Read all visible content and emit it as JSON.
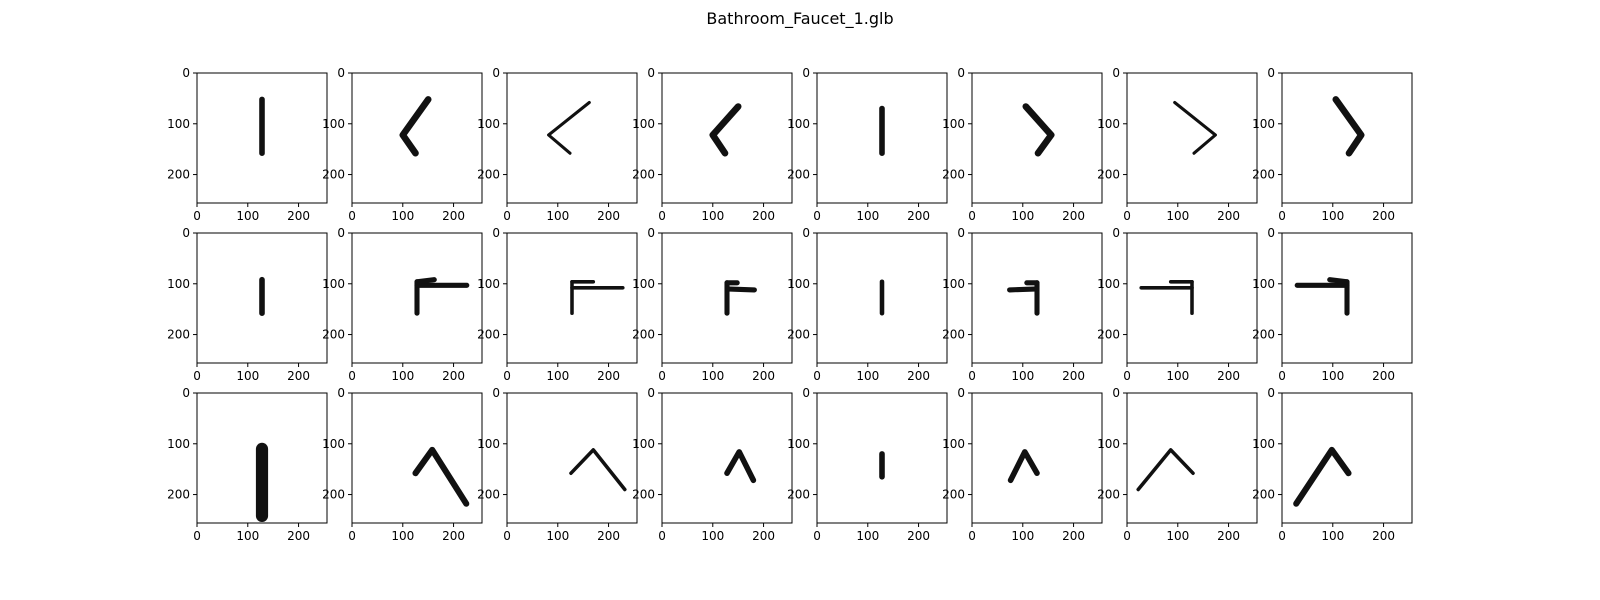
{
  "title": "Bathroom_Faucet_1.glb",
  "chart_data": {
    "type": "image_grid",
    "rows": 3,
    "cols": 8,
    "xlim": [
      0,
      256
    ],
    "ylim": [
      256,
      0
    ],
    "xticks": [
      0,
      100,
      200
    ],
    "yticks": [
      0,
      100,
      200
    ],
    "panel_background": "#ffffff",
    "object_color": "#111111",
    "grid": false,
    "panels": [
      {
        "shape": "upright",
        "lines": [
          [
            [
              128,
              52
            ],
            [
              128,
              158
            ]
          ]
        ],
        "w": 11
      },
      {
        "shape": "chevron",
        "lines": [
          [
            [
              150,
              52
            ],
            [
              100,
              122
            ],
            [
              125,
              158
            ]
          ]
        ],
        "w": 13
      },
      {
        "shape": "chevron-thin",
        "lines": [
          [
            [
              162,
              58
            ],
            [
              82,
              122
            ],
            [
              124,
              158
            ]
          ]
        ],
        "w": 6
      },
      {
        "shape": "chevron",
        "lines": [
          [
            [
              150,
              66
            ],
            [
              100,
              122
            ],
            [
              124,
              158
            ]
          ]
        ],
        "w": 13
      },
      {
        "shape": "upright",
        "lines": [
          [
            [
              128,
              70
            ],
            [
              128,
              158
            ]
          ]
        ],
        "w": 11
      },
      {
        "shape": "chevron",
        "lines": [
          [
            [
              106,
              66
            ],
            [
              156,
              122
            ],
            [
              130,
              158
            ]
          ]
        ],
        "w": 13
      },
      {
        "shape": "chevron-thin",
        "lines": [
          [
            [
              94,
              58
            ],
            [
              174,
              122
            ],
            [
              132,
              158
            ]
          ]
        ],
        "w": 6
      },
      {
        "shape": "chevron",
        "lines": [
          [
            [
              106,
              52
            ],
            [
              156,
              122
            ],
            [
              132,
              158
            ]
          ]
        ],
        "w": 13
      },
      {
        "shape": "upright",
        "lines": [
          [
            [
              128,
              92
            ],
            [
              128,
              158
            ]
          ]
        ],
        "w": 11
      },
      {
        "shape": "faucet",
        "lines": [
          [
            [
              128,
              96
            ],
            [
              128,
              158
            ]
          ],
          [
            [
              128,
              103
            ],
            [
              226,
              103
            ]
          ],
          [
            [
              128,
              96
            ],
            [
              162,
              92
            ]
          ]
        ],
        "w": 10
      },
      {
        "shape": "faucet",
        "lines": [
          [
            [
              128,
              96
            ],
            [
              128,
              158
            ]
          ],
          [
            [
              128,
              108
            ],
            [
              228,
              108
            ]
          ],
          [
            [
              128,
              96
            ],
            [
              170,
              96
            ]
          ]
        ],
        "w": 7
      },
      {
        "shape": "faucet",
        "lines": [
          [
            [
              128,
              98
            ],
            [
              128,
              158
            ]
          ],
          [
            [
              128,
              110
            ],
            [
              182,
              112
            ]
          ],
          [
            [
              128,
              98
            ],
            [
              148,
              98
            ]
          ]
        ],
        "w": 10
      },
      {
        "shape": "upright",
        "lines": [
          [
            [
              128,
              96
            ],
            [
              128,
              158
            ]
          ]
        ],
        "w": 9
      },
      {
        "shape": "faucet",
        "lines": [
          [
            [
              128,
              98
            ],
            [
              128,
              158
            ]
          ],
          [
            [
              128,
              110
            ],
            [
              74,
              112
            ]
          ],
          [
            [
              128,
              98
            ],
            [
              108,
              98
            ]
          ]
        ],
        "w": 10
      },
      {
        "shape": "faucet",
        "lines": [
          [
            [
              128,
              96
            ],
            [
              128,
              158
            ]
          ],
          [
            [
              128,
              108
            ],
            [
              28,
              108
            ]
          ],
          [
            [
              128,
              96
            ],
            [
              86,
              96
            ]
          ]
        ],
        "w": 7
      },
      {
        "shape": "faucet",
        "lines": [
          [
            [
              128,
              96
            ],
            [
              128,
              158
            ]
          ],
          [
            [
              128,
              103
            ],
            [
              30,
              103
            ]
          ],
          [
            [
              128,
              96
            ],
            [
              94,
              92
            ]
          ]
        ],
        "w": 10
      },
      {
        "shape": "upright",
        "lines": [
          [
            [
              128,
              110
            ],
            [
              128,
              242
            ]
          ]
        ],
        "w": 24
      },
      {
        "shape": "chevron",
        "lines": [
          [
            [
              125,
              158
            ],
            [
              158,
              112
            ],
            [
              225,
              218
            ]
          ]
        ],
        "w": 12
      },
      {
        "shape": "chevron-thin",
        "lines": [
          [
            [
              126,
              158
            ],
            [
              170,
              112
            ],
            [
              232,
              190
            ]
          ]
        ],
        "w": 7
      },
      {
        "shape": "chevron",
        "lines": [
          [
            [
              128,
              158
            ],
            [
              152,
              116
            ],
            [
              180,
              172
            ]
          ]
        ],
        "w": 11
      },
      {
        "shape": "upright",
        "lines": [
          [
            [
              128,
              120
            ],
            [
              128,
              165
            ]
          ]
        ],
        "w": 11
      },
      {
        "shape": "chevron",
        "lines": [
          [
            [
              76,
              172
            ],
            [
              104,
              116
            ],
            [
              128,
              158
            ]
          ]
        ],
        "w": 11
      },
      {
        "shape": "chevron-thin",
        "lines": [
          [
            [
              22,
              190
            ],
            [
              86,
              112
            ],
            [
              130,
              158
            ]
          ]
        ],
        "w": 7
      },
      {
        "shape": "chevron",
        "lines": [
          [
            [
              28,
              218
            ],
            [
              98,
              112
            ],
            [
              131,
              158
            ]
          ]
        ],
        "w": 12
      }
    ]
  }
}
